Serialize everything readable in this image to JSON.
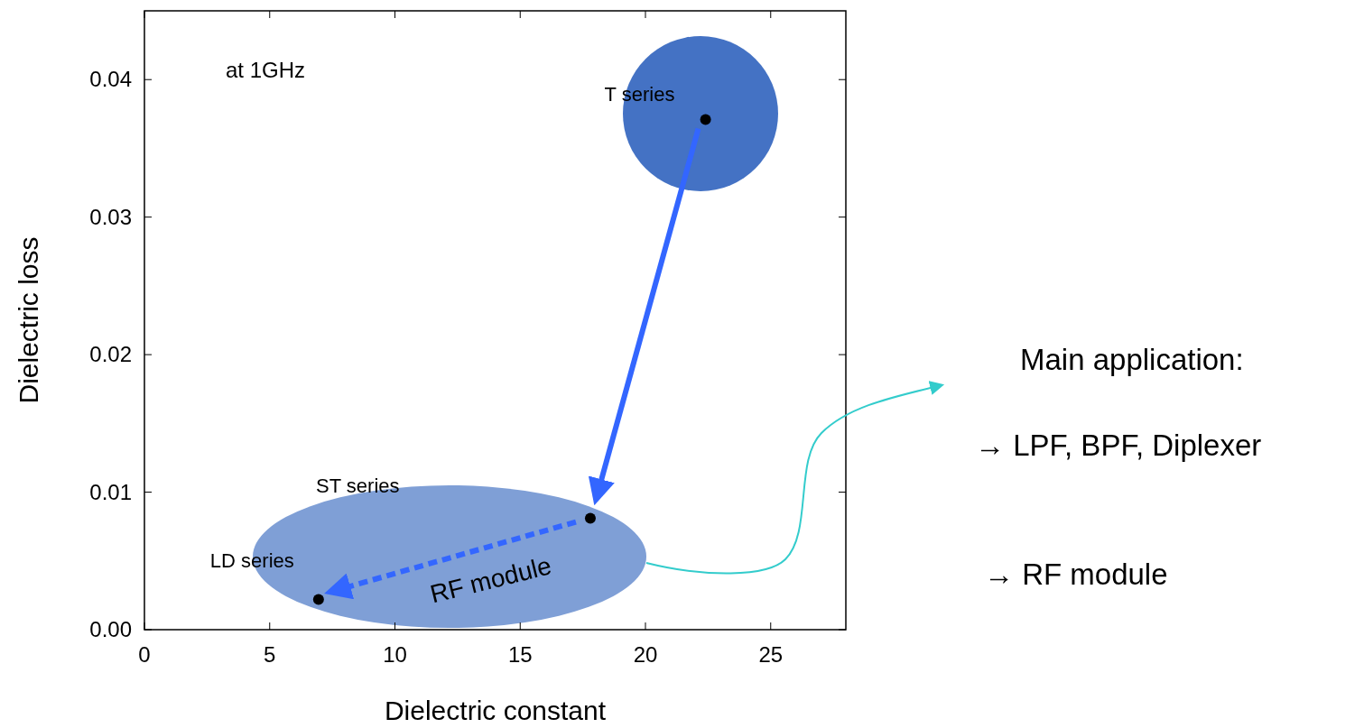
{
  "chart_data": {
    "type": "scatter",
    "xlabel": "Dielectric constant",
    "ylabel": "Dielectric loss",
    "xlim": [
      0,
      28
    ],
    "ylim": [
      0,
      0.045
    ],
    "xticks": [
      0,
      5,
      10,
      15,
      20,
      25
    ],
    "yticks": [
      {
        "value": 0,
        "label": "0.00"
      },
      {
        "value": 0.01,
        "label": "0.01"
      },
      {
        "value": 0.02,
        "label": "0.02"
      },
      {
        "value": 0.03,
        "label": "0.03"
      },
      {
        "value": 0.04,
        "label": "0.04"
      }
    ],
    "grid": false,
    "marker": "circle",
    "series": [
      {
        "color": "#000000",
        "x": [
          22.4,
          17.8,
          6.95
        ],
        "values": [
          0.0371,
          0.0081,
          0.0022
        ]
      }
    ],
    "annotations": [
      {
        "text": "T series",
        "x": 22.4,
        "y": 0.0371
      },
      {
        "text": "LD series",
        "x": 6.95,
        "y": 0.0022
      },
      "ST series",
      "at 1GHz",
      "RF module",
      "Main application:",
      "→  LPF, BPF, Diplexer",
      "→ RF module"
    ]
  }
}
